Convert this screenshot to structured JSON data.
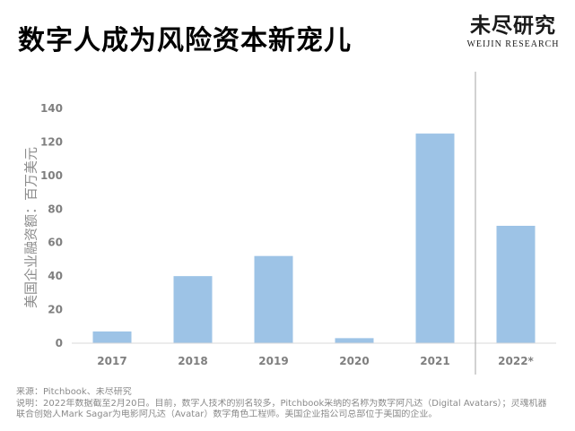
{
  "header": {
    "title": "数字人成为风险资本新宠儿",
    "brand_cn": "未尽研究",
    "brand_en": "WEIJIN RESEARCH"
  },
  "colors": {
    "bar": "#9dc3e6",
    "axis_text": "#7f7f7f",
    "separator": "#a6a6a6"
  },
  "chart_data": {
    "type": "bar",
    "categories": [
      "2017",
      "2018",
      "2019",
      "2020",
      "2021",
      "2022*"
    ],
    "values": [
      7,
      40,
      52,
      3,
      125,
      70
    ],
    "yticks": [
      0,
      20,
      40,
      60,
      80,
      100,
      120,
      140
    ],
    "ylim": [
      0,
      140
    ],
    "ylabel": "美国企业融资额：百万美元",
    "grid": false,
    "separator_before": "2022*"
  },
  "footnotes": {
    "source": "来源：Pitchbook、未尽研究",
    "note_line1": "说明：2022年数据截至2月20日。目前，数字人技术的别名较多，Pitchbook采纳的名称为数字阿凡达（Digital Avatars）；灵魂机器",
    "note_line2": "联合创始人Mark Sagar为电影阿凡达（Avatar）数字角色工程师。美国企业指公司总部位于美国的企业。"
  }
}
